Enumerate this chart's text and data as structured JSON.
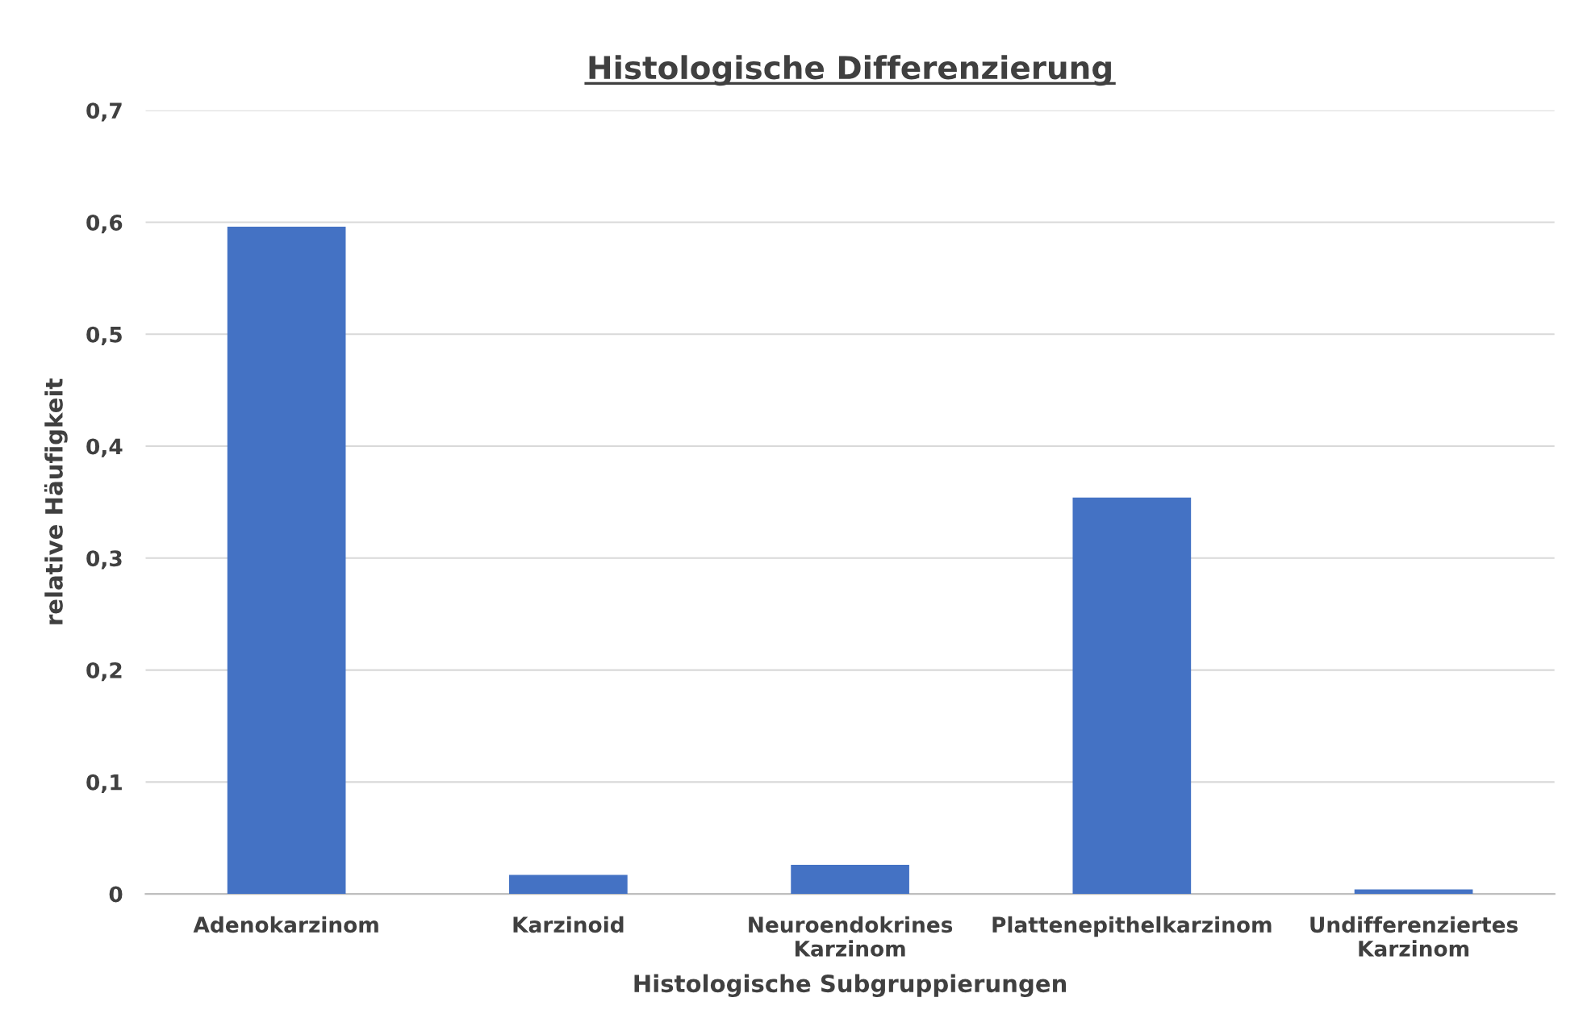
{
  "chart_data": {
    "type": "bar",
    "title": "Histologische Differenzierung",
    "xlabel": "Histologische Subgruppierungen",
    "ylabel": "relative Häufigkeit",
    "categories": [
      "Adenokarzinom",
      "Karzinoid",
      "Neuroendokrines Karzinom",
      "Plattenepithelkarzinom",
      "Undifferenziertes Karzinom"
    ],
    "values": [
      0.596,
      0.017,
      0.026,
      0.354,
      0.004
    ],
    "color": "#4472c4",
    "ylim": [
      0,
      0.7
    ],
    "yticks": [
      {
        "value": 0,
        "label": "0"
      },
      {
        "value": 0.1,
        "label": "0,1"
      },
      {
        "value": 0.2,
        "label": "0,2"
      },
      {
        "value": 0.3,
        "label": "0,3"
      },
      {
        "value": 0.4,
        "label": "0,4"
      },
      {
        "value": 0.5,
        "label": "0,5"
      },
      {
        "value": 0.6,
        "label": "0,6"
      },
      {
        "value": 0.7,
        "label": "0,7"
      }
    ],
    "grid": "y",
    "legend": false
  }
}
